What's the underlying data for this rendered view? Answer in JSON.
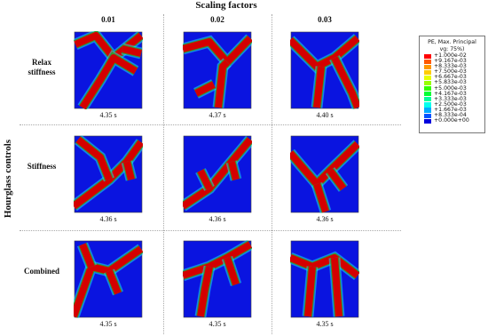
{
  "header": {
    "title": "Scaling factors",
    "columns": [
      "0.01",
      "0.02",
      "0.03"
    ],
    "row_axis_label": "Hourglass controls"
  },
  "rows": [
    {
      "label": "Relax stiffness",
      "times": [
        "4.35 s",
        "4.37 s",
        "4.40 s"
      ]
    },
    {
      "label": "Stiffness",
      "times": [
        "4.36 s",
        "4.36 s",
        "4.36 s"
      ]
    },
    {
      "label": "Combined",
      "times": [
        "4.35 s",
        "4.35 s",
        "4.35 s"
      ]
    }
  ],
  "legend": {
    "title": "PE, Max. Principal",
    "subtitle": "vg: 75%)",
    "levels": [
      {
        "label": "+1.000e-02",
        "color": "#ff0000"
      },
      {
        "label": "+9.167e-03",
        "color": "#ff5a00"
      },
      {
        "label": "+8.333e-03",
        "color": "#ff9900"
      },
      {
        "label": "+7.500e-03",
        "color": "#ffcc00"
      },
      {
        "label": "+6.667e-03",
        "color": "#e6ff00"
      },
      {
        "label": "+5.833e-03",
        "color": "#99ff00"
      },
      {
        "label": "+5.000e-03",
        "color": "#33ff00"
      },
      {
        "label": "+4.167e-03",
        "color": "#00ff33"
      },
      {
        "label": "+3.333e-03",
        "color": "#00ff99"
      },
      {
        "label": "+2.500e-03",
        "color": "#00ffee"
      },
      {
        "label": "+1.667e-03",
        "color": "#00aaff"
      },
      {
        "label": "+8.333e-04",
        "color": "#0055ff"
      },
      {
        "label": "+0.000e+00",
        "color": "#0000dd"
      }
    ]
  }
}
